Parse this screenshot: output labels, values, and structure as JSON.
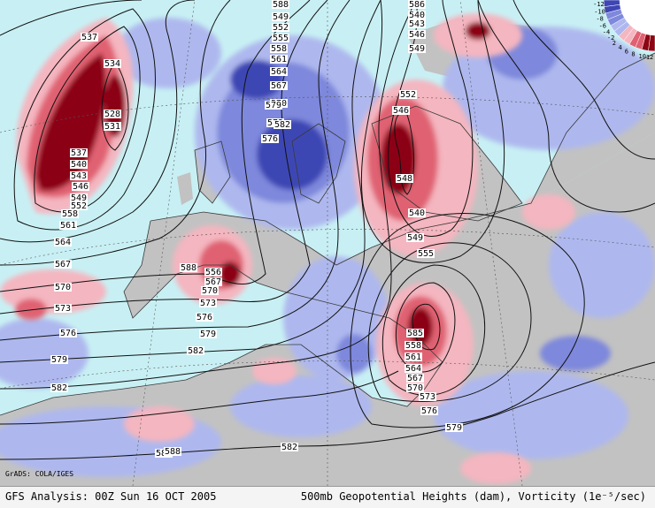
{
  "credit": "GrADS: COLA/IGES",
  "footer": {
    "left": "GFS Analysis: 00Z Sun 16 OCT 2005",
    "right": "500mb Geopotential Heights (dam), Vorticity (1e⁻⁵/sec)"
  },
  "colors": {
    "ocean": "#c8f0f4",
    "land": "#c2c2c2",
    "neg_weak": "#aeb8ee",
    "neg_mid": "#7e88dc",
    "neg_strong": "#3e46b4",
    "pos_weak": "#f4b6c0",
    "pos_mid": "#e06272",
    "pos_strong": "#8c0614"
  },
  "colorbar": {
    "labels": [
      "12",
      "10",
      "8",
      "6",
      "4",
      "2",
      "-2",
      "-4",
      "-6",
      "-8",
      "-10",
      "-12"
    ]
  },
  "contour_labels": [
    "537",
    "534",
    "528",
    "531",
    "537",
    "540",
    "543",
    "546",
    "549",
    "552",
    "558",
    "561",
    "564",
    "567",
    "570",
    "573",
    "576",
    "579",
    "582",
    "585",
    "588",
    "549",
    "552",
    "555",
    "558",
    "561",
    "564",
    "567",
    "570",
    "573",
    "576",
    "579",
    "582",
    "586",
    "540",
    "543",
    "546",
    "549",
    "552",
    "546",
    "548",
    "540",
    "549",
    "555",
    "556",
    "567",
    "570",
    "573",
    "576",
    "579",
    "582",
    "585",
    "558",
    "561",
    "564",
    "567",
    "570",
    "573",
    "576",
    "579",
    "582",
    "588",
    "588"
  ]
}
